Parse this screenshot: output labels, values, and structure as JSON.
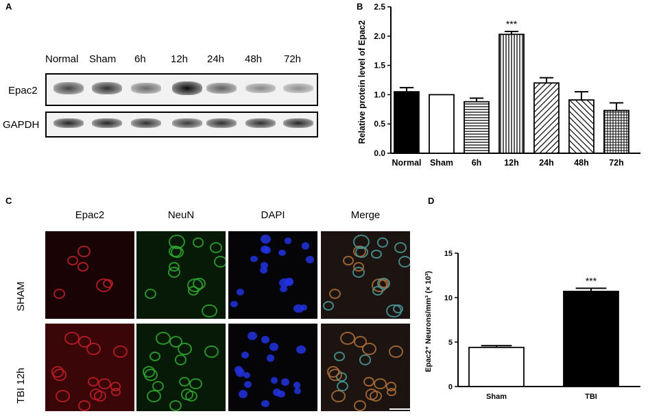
{
  "panel_labels": {
    "a": "A",
    "b": "B",
    "c": "C",
    "d": "D"
  },
  "panel_a": {
    "lanes": [
      "Normal",
      "Sham",
      "6h",
      "12h",
      "24h",
      "48h",
      "72h"
    ],
    "rows": [
      "Epac2",
      "GAPDH"
    ],
    "epac2_intensity": [
      0.7,
      0.8,
      0.5,
      1.0,
      0.55,
      0.35,
      0.3
    ],
    "gapdh_intensity": [
      0.85,
      0.85,
      0.8,
      0.75,
      0.8,
      0.8,
      0.85
    ]
  },
  "panel_c": {
    "columns": [
      "Epac2",
      "NeuN",
      "DAPI",
      "Merge"
    ],
    "rows": [
      "SHAM",
      "TBI 12h"
    ],
    "channel_colors": {
      "Epac2": "#c0202a",
      "NeuN": "#2fa830",
      "DAPI": "#2233e0"
    }
  },
  "chart_data": [
    {
      "type": "bar",
      "ylabel": "Relative protein level of Epac2",
      "categories": [
        "Normal",
        "Sham",
        "6h",
        "12h",
        "24h",
        "48h",
        "72h"
      ],
      "values": [
        1.05,
        1.0,
        0.88,
        2.03,
        1.2,
        0.91,
        0.73
      ],
      "errors": [
        0.07,
        0.0,
        0.06,
        0.05,
        0.09,
        0.14,
        0.13
      ],
      "ylim": [
        0,
        2.5
      ],
      "yticks": [
        "0.0",
        "0.5",
        "1.0",
        "1.5",
        "2.0",
        "2.5"
      ],
      "fills": [
        "solid",
        "empty",
        "horizontal",
        "vertical",
        "diag-up",
        "diag-down",
        "grid"
      ],
      "annotation": {
        "category": "12h",
        "text": "***"
      }
    },
    {
      "type": "bar",
      "ylabel": "Epac2⁺ Neurons/mm³ (× 10³)",
      "categories": [
        "Sham",
        "TBI"
      ],
      "values": [
        4.4,
        10.7
      ],
      "errors": [
        0.2,
        0.35
      ],
      "ylim": [
        0,
        15
      ],
      "yticks": [
        "0",
        "5",
        "10",
        "15"
      ],
      "fills": [
        "empty",
        "solid"
      ],
      "annotation": {
        "category": "TBI",
        "text": "***"
      }
    }
  ]
}
